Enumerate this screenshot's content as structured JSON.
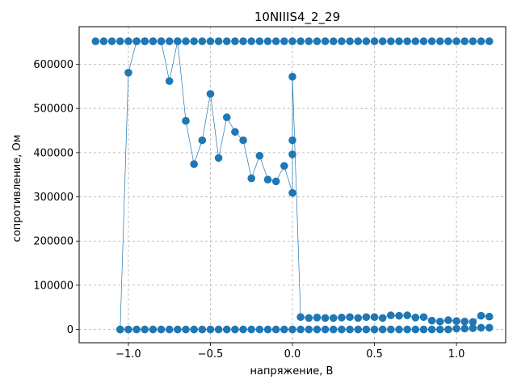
{
  "chart_data": {
    "type": "line",
    "title": "10NIIIS4_2_29",
    "xlabel": "напряжение, В",
    "ylabel": "сопротивление, Ом",
    "xlim": [
      -1.3,
      1.3
    ],
    "ylim": [
      -30000,
      685000
    ],
    "xticks": [
      -1.0,
      -0.5,
      0.0,
      0.5,
      1.0
    ],
    "xtick_labels": [
      "−1.0",
      "−0.5",
      "0.0",
      "0.5",
      "1.0"
    ],
    "yticks": [
      0,
      100000,
      200000,
      300000,
      400000,
      500000,
      600000
    ],
    "ytick_labels": [
      "0",
      "100000",
      "200000",
      "300000",
      "400000",
      "500000",
      "600000"
    ],
    "grid": true,
    "color": "#1f77b4",
    "series": [
      {
        "x": [
          -1.2,
          -1.15,
          -1.1,
          -1.05,
          -1.0,
          -0.95,
          -0.9,
          -0.85,
          -0.8,
          -0.75,
          -0.7,
          -0.65,
          -0.6,
          -0.55,
          -0.5,
          -0.45,
          -0.4,
          -0.35,
          -0.3,
          -0.25,
          -0.2,
          -0.15,
          -0.1,
          -0.05,
          0.0,
          0.05,
          0.1,
          0.15,
          0.2,
          0.25,
          0.3,
          0.35,
          0.4,
          0.45,
          0.5,
          0.55,
          0.6,
          0.65,
          0.7,
          0.75,
          0.8,
          0.85,
          0.9,
          0.95,
          1.0,
          1.05,
          1.1,
          1.15,
          1.2
        ],
        "y": [
          652000,
          652000,
          652000,
          652000,
          652000,
          652000,
          652000,
          652000,
          652000,
          652000,
          652000,
          652000,
          652000,
          652000,
          652000,
          652000,
          652000,
          652000,
          652000,
          652000,
          652000,
          652000,
          652000,
          652000,
          652000,
          652000,
          652000,
          652000,
          652000,
          652000,
          652000,
          652000,
          652000,
          652000,
          652000,
          652000,
          652000,
          652000,
          652000,
          652000,
          652000,
          652000,
          652000,
          652000,
          652000,
          652000,
          652000,
          652000,
          652000
        ]
      },
      {
        "x": [
          1.2,
          1.15,
          1.1,
          1.05,
          1.0,
          0.95,
          0.9,
          0.85,
          0.8,
          0.75,
          0.7,
          0.65,
          0.6,
          0.55,
          0.5,
          0.45,
          0.4,
          0.35,
          0.3,
          0.25,
          0.2,
          0.15,
          0.1,
          0.05,
          0.0,
          0.0,
          0.0,
          0.0,
          -0.05,
          -0.1,
          -0.15,
          -0.2,
          -0.25,
          -0.3,
          -0.35,
          -0.4,
          -0.45,
          -0.5,
          -0.55,
          -0.6,
          -0.65,
          -0.7,
          -0.75,
          -0.8,
          -0.85,
          -0.9,
          -0.95,
          -1.0,
          -1.05
        ],
        "y": [
          29000,
          31000,
          17000,
          18000,
          19000,
          21000,
          18000,
          20000,
          28000,
          27000,
          32000,
          31000,
          32000,
          26000,
          28000,
          28000,
          26000,
          28000,
          27000,
          26000,
          26000,
          27000,
          26000,
          28000,
          572000,
          428000,
          396000,
          309000,
          370000,
          335000,
          339000,
          393000,
          342000,
          428000,
          447000,
          480000,
          388000,
          533000,
          428000,
          374000,
          472000,
          652000,
          562000,
          652000,
          652000,
          652000,
          652000,
          581000,
          0
        ]
      },
      {
        "x": [
          -1.05,
          -1.0,
          -0.95,
          -0.9,
          -0.85,
          -0.8,
          -0.75,
          -0.7,
          -0.65,
          -0.6,
          -0.55,
          -0.5,
          -0.45,
          -0.4,
          -0.35,
          -0.3,
          -0.25,
          -0.2,
          -0.15,
          -0.1,
          -0.05,
          0.0,
          0.05,
          0.1,
          0.15,
          0.2,
          0.25,
          0.3,
          0.35,
          0.4,
          0.45,
          0.5,
          0.55,
          0.6,
          0.65,
          0.7,
          0.75,
          0.8,
          0.85,
          0.9,
          0.95,
          1.0,
          1.05,
          1.1,
          1.15,
          1.2
        ],
        "y": [
          0,
          0,
          0,
          0,
          0,
          0,
          0,
          0,
          0,
          0,
          0,
          0,
          0,
          0,
          0,
          0,
          0,
          0,
          0,
          0,
          0,
          0,
          0,
          0,
          0,
          0,
          0,
          0,
          0,
          0,
          0,
          0,
          0,
          0,
          0,
          0,
          0,
          0,
          0,
          0,
          0,
          2000,
          2000,
          3000,
          4000,
          4000
        ]
      }
    ]
  }
}
